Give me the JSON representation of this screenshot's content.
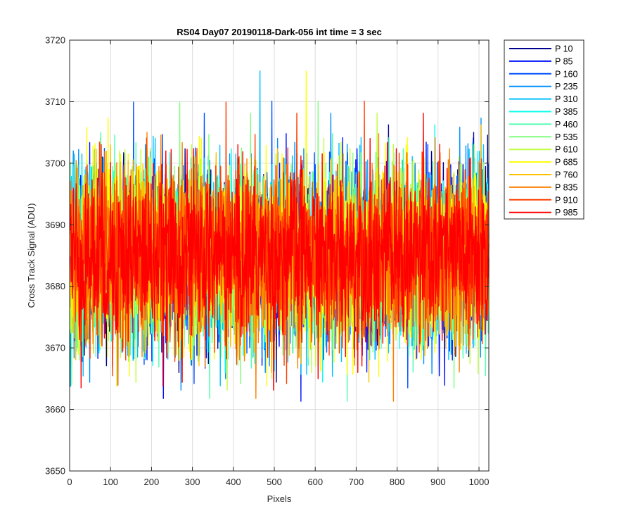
{
  "chart_data": {
    "type": "line",
    "title": "RS04 Day07 20190118-Dark-056 int time = 3 sec",
    "xlabel": "Pixels",
    "ylabel": "Cross Track Signal (ADU)",
    "xlim": [
      0,
      1024
    ],
    "ylim": [
      3650,
      3720
    ],
    "xticks": [
      0,
      100,
      200,
      300,
      400,
      500,
      600,
      700,
      800,
      900,
      1000
    ],
    "yticks": [
      3650,
      3660,
      3670,
      3680,
      3690,
      3700,
      3710,
      3720
    ],
    "grid": true,
    "legend_position": "outside-top-right",
    "noise_model": {
      "mean": 3685,
      "std": 7,
      "min": 3655,
      "max": 3718
    },
    "x": {
      "start": 1,
      "end": 1024,
      "step": 1
    },
    "series": [
      {
        "name": "P 10",
        "color": "#00008f"
      },
      {
        "name": "P 85",
        "color": "#0010ff"
      },
      {
        "name": "P 160",
        "color": "#0050ff"
      },
      {
        "name": "P 235",
        "color": "#0090ff"
      },
      {
        "name": "P 310",
        "color": "#00c0ff"
      },
      {
        "name": "P 385",
        "color": "#10ffef"
      },
      {
        "name": "P 460",
        "color": "#50ffaf"
      },
      {
        "name": "P 535",
        "color": "#80ff80"
      },
      {
        "name": "P 610",
        "color": "#c0ff40"
      },
      {
        "name": "P 685",
        "color": "#ffff00"
      },
      {
        "name": "P 760",
        "color": "#ffc000"
      },
      {
        "name": "P 835",
        "color": "#ff8000"
      },
      {
        "name": "P 910",
        "color": "#ff4000"
      },
      {
        "name": "P 985",
        "color": "#ff0000"
      }
    ]
  }
}
